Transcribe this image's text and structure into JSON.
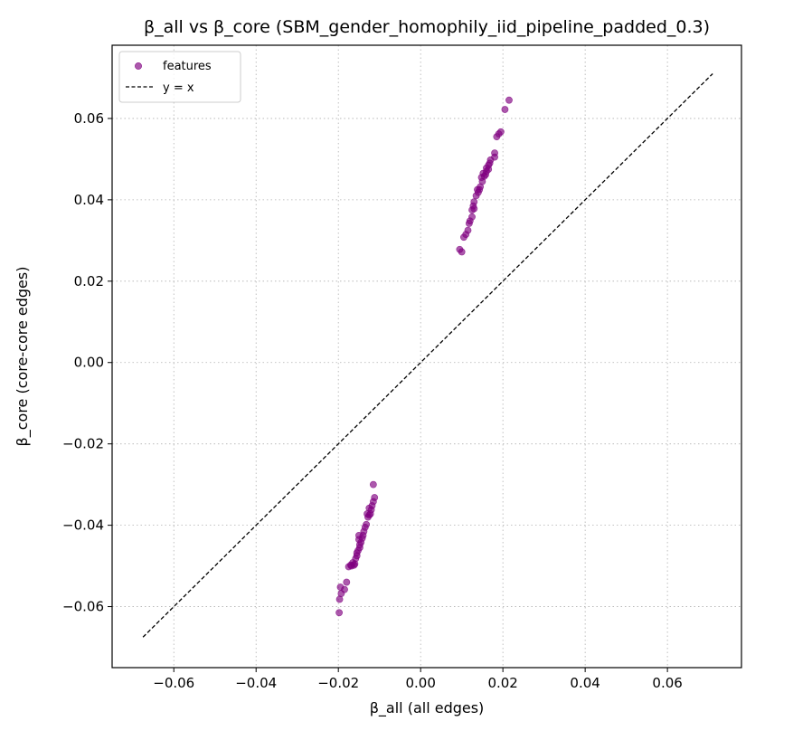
{
  "chart_data": {
    "type": "scatter",
    "title": "β_all vs β_core (SBM_gender_homophily_iid_pipeline_padded_0.3)",
    "xlabel": "β_all (all edges)",
    "ylabel": "β_core (core-core edges)",
    "xlim": [
      -0.075,
      0.078
    ],
    "ylim": [
      -0.075,
      0.078
    ],
    "xticks": [
      -0.06,
      -0.04,
      -0.02,
      0.0,
      0.02,
      0.04,
      0.06
    ],
    "yticks": [
      -0.06,
      -0.04,
      -0.02,
      0.0,
      0.02,
      0.04,
      0.06
    ],
    "xtick_labels": [
      "−0.06",
      "−0.04",
      "−0.02",
      "0.00",
      "0.02",
      "0.04",
      "0.06"
    ],
    "ytick_labels": [
      "−0.06",
      "−0.04",
      "−0.02",
      "0.00",
      "0.02",
      "0.04",
      "0.06"
    ],
    "grid": true,
    "legend_position": "top-left",
    "series": [
      {
        "name": "features",
        "kind": "scatter",
        "color": "#800080",
        "x": [
          0.0215,
          0.0205,
          0.0195,
          0.019,
          0.0185,
          0.018,
          0.018,
          0.017,
          0.0168,
          0.0165,
          0.0165,
          0.016,
          0.016,
          0.0158,
          0.0155,
          0.015,
          0.0152,
          0.0148,
          0.0145,
          0.0143,
          0.014,
          0.0138,
          0.0135,
          0.013,
          0.013,
          0.0128,
          0.0125,
          0.0125,
          0.012,
          0.0118,
          0.0115,
          0.011,
          0.0105,
          0.0095,
          0.01,
          -0.0115,
          -0.0112,
          -0.0115,
          -0.0118,
          -0.012,
          -0.0122,
          -0.0125,
          -0.0128,
          -0.013,
          -0.0125,
          -0.0132,
          -0.0135,
          -0.0138,
          -0.014,
          -0.0142,
          -0.0145,
          -0.0148,
          -0.0148,
          -0.015,
          -0.015,
          -0.0152,
          -0.0155,
          -0.0155,
          -0.0158,
          -0.016,
          -0.0162,
          -0.0165,
          -0.0168,
          -0.017,
          -0.0175,
          -0.018,
          -0.0185,
          -0.0193,
          -0.0195,
          -0.0197,
          -0.0198
        ],
        "y": [
          0.0645,
          0.0622,
          0.0567,
          0.0562,
          0.0555,
          0.0515,
          0.0505,
          0.0498,
          0.049,
          0.0485,
          0.0475,
          0.0478,
          0.047,
          0.0462,
          0.0458,
          0.0445,
          0.0465,
          0.0455,
          0.0432,
          0.0425,
          0.0418,
          0.0425,
          0.041,
          0.0395,
          0.0378,
          0.0385,
          0.0375,
          0.0358,
          0.0348,
          0.0342,
          0.0325,
          0.0315,
          0.0308,
          0.0278,
          0.0272,
          -0.03,
          -0.0332,
          -0.0342,
          -0.0352,
          -0.0362,
          -0.0372,
          -0.0358,
          -0.038,
          -0.0372,
          -0.0375,
          -0.0398,
          -0.0405,
          -0.0415,
          -0.0425,
          -0.0432,
          -0.0442,
          -0.0455,
          -0.0448,
          -0.0425,
          -0.0435,
          -0.0462,
          -0.0468,
          -0.0475,
          -0.0482,
          -0.0495,
          -0.0498,
          -0.0492,
          -0.05,
          -0.0498,
          -0.0502,
          -0.054,
          -0.0558,
          -0.0568,
          -0.0552,
          -0.0582,
          -0.0615
        ]
      },
      {
        "name": "y = x",
        "kind": "line",
        "color": "#000000",
        "dash": "dashed",
        "x": [
          -0.0675,
          0.071
        ],
        "y": [
          -0.0675,
          0.071
        ]
      }
    ]
  }
}
